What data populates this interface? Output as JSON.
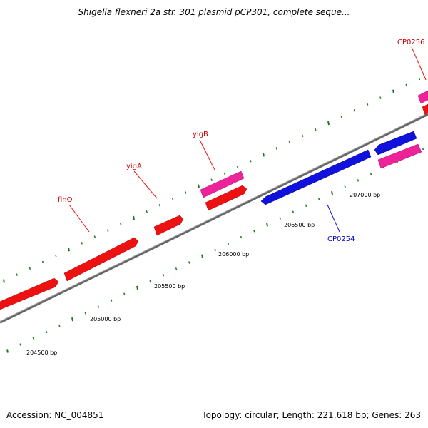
{
  "title": "Shigella flexneri 2a str. 301 plasmid pCP301, complete seque...",
  "footer": {
    "accession": "Accession: NC_004851",
    "summary": "Topology: circular; Length: 221,618 bp; Genes: 263"
  },
  "colors": {
    "forward_gene": "#ee1111",
    "forward_gene_alt": "#ee2299",
    "reverse_gene": "#1111dd",
    "backbone": "#888888",
    "tick": "#1a7a1a",
    "label_red": "#cc0000",
    "label_blue": "#0000cc"
  },
  "scale_labels": [
    "204500 bp",
    "205000 bp",
    "205500 bp",
    "206000 bp",
    "206500 bp",
    "207000 bp"
  ],
  "genes": [
    {
      "name": "finO",
      "color": "label_red"
    },
    {
      "name": "yigA",
      "color": "label_red"
    },
    {
      "name": "yigB",
      "color": "label_red"
    },
    {
      "name": "CP0254",
      "color": "label_blue"
    },
    {
      "name": "CP0256",
      "color": "label_red"
    }
  ]
}
